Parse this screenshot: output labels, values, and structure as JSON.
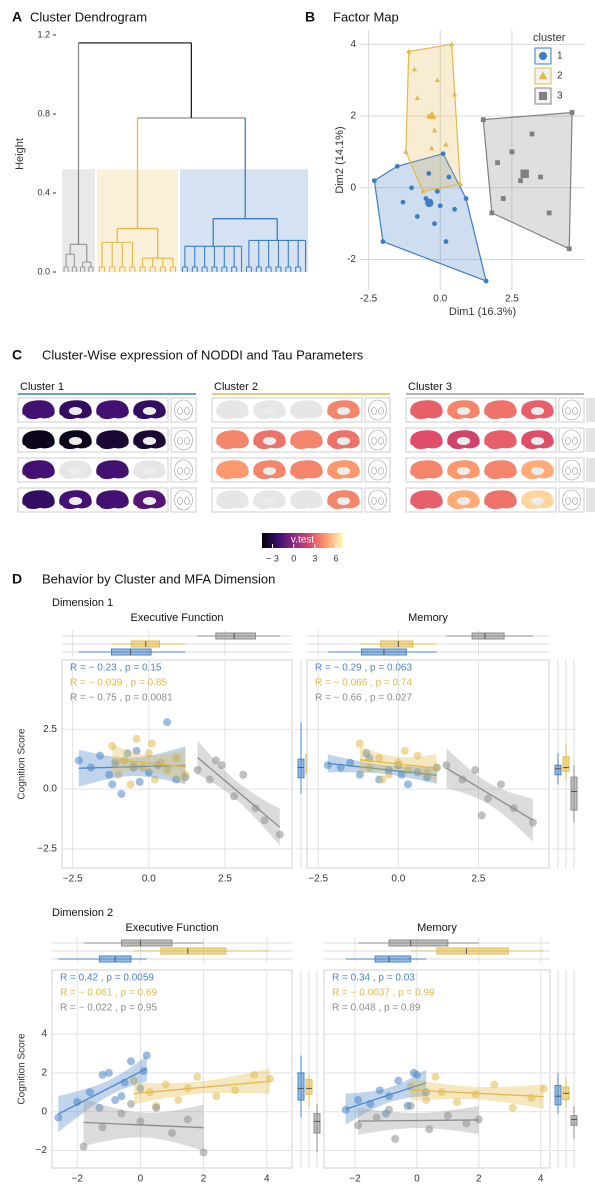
{
  "panels": [
    "A",
    "B",
    "C",
    "D"
  ],
  "panel_d": {
    "title": "Behavior by Cluster and MFA Dimension"
  },
  "chart_data": [
    {
      "type": "dendrogram",
      "title": "Cluster Dendrogram",
      "y_label": "Height",
      "ylim": [
        0,
        1.2
      ],
      "yticks": [
        {
          "value": 0,
          "label": "0.0"
        },
        0.4,
        0.8,
        1.2
      ],
      "root_height": 1.16,
      "join_height": 0.78,
      "cut_height": 0.52,
      "series": [
        {
          "color": "#9a9a9a",
          "height": 0.14,
          "sub_heights": [
            0.09,
            0.05
          ]
        },
        {
          "color": "#e3b94a",
          "height": 0.22,
          "sub_heights": [
            0.15,
            0.07
          ]
        },
        {
          "color": "#3c7dc4",
          "height": 0.27,
          "sub_heights": [
            0.13,
            0.16
          ]
        }
      ]
    },
    {
      "type": "scatter",
      "title": "Factor Map",
      "x_label": "Dim1 (16.3%)",
      "y_label": "Dim2 (14.1%)",
      "xlim": [
        -2.8,
        5.05
      ],
      "ylim": [
        -2.85,
        4.4
      ],
      "xticks": [
        -2.5,
        {
          "value": 0,
          "label": "0.0"
        },
        2.5
      ],
      "yticks": [
        -2,
        0,
        2,
        4
      ],
      "grid": true,
      "legend_title": "cluster",
      "legend": "top-right",
      "series": [
        {
          "name": "1",
          "color": "#3c7dc4",
          "marker": "circle",
          "x": [
            -2.3,
            -2.0,
            1.6,
            0.9,
            0.1,
            -1.5,
            -1.0,
            -0.5,
            0,
            0.3,
            -0.8,
            -0.2,
            0.5,
            -1.3,
            -0.4,
            0.2,
            -0.1
          ],
          "values": [
            0.2,
            -1.5,
            -2.6,
            -0.3,
            0.95,
            0.6,
            0,
            -0.3,
            -0.5,
            0.3,
            -0.8,
            -1.0,
            -0.6,
            -0.4,
            0.4,
            -1.5,
            -0.1
          ]
        },
        {
          "name": "2",
          "color": "#e3b94a",
          "marker": "triangle",
          "x": [
            -1.1,
            0.4,
            0.7,
            -0.6,
            -1.2,
            -0.8,
            -0.4,
            0.2,
            -0.1,
            -0.9,
            0.5,
            -0.3,
            -0.2
          ],
          "values": [
            3.8,
            4.0,
            0.1,
            -0.1,
            1.0,
            2.5,
            2.0,
            1.2,
            3.0,
            3.3,
            2.6,
            1.1,
            1.6
          ]
        },
        {
          "name": "3",
          "color": "#808080",
          "marker": "square",
          "x": [
            1.5,
            4.6,
            4.5,
            1.8,
            2.0,
            2.5,
            3.5,
            2.8,
            3.2,
            3.8,
            2.2
          ],
          "values": [
            1.9,
            2.1,
            -1.7,
            -0.7,
            0.7,
            1.0,
            0.3,
            0.2,
            1.5,
            -0.7,
            -0.3
          ]
        }
      ]
    },
    {
      "type": "heatmap",
      "title": "Cluster-Wise expression of NODDI and Tau Parameters",
      "columns": [
        "Cluster 1",
        "Cluster 2",
        "Cluster 3"
      ],
      "column_colors": [
        "#3c7dc4",
        "#e3b94a",
        "#9a9a9a"
      ],
      "values": [
        [
          [
            -2,
            -2.5,
            -2,
            -2.5
          ],
          [
            -4,
            -4,
            -3.5,
            -3.5
          ],
          [
            -2,
            null,
            -2,
            null
          ],
          [
            -2.5,
            -2,
            -2,
            -1.5
          ]
        ],
        [
          [
            null,
            null,
            null,
            4
          ],
          [
            4,
            3.5,
            4,
            3.5
          ],
          [
            4.5,
            4,
            4,
            4.5
          ],
          [
            null,
            null,
            null,
            4
          ]
        ],
        [
          [
            3,
            4,
            3.5,
            3
          ],
          [
            2.5,
            2,
            3,
            2.5
          ],
          [
            4,
            4.5,
            4,
            5
          ],
          [
            3,
            5,
            3.5,
            6
          ]
        ]
      ],
      "colorbar_label": "v.test",
      "lim": [
        -4.5,
        7
      ],
      "ticks": [
        {
          "value": -3,
          "label": "− 3"
        },
        0,
        3,
        6
      ],
      "colors": [
        "#000004",
        "#3b0f70",
        "#8c2981",
        "#de4968",
        "#fe9f6d",
        "#fcfdbf"
      ]
    },
    {
      "type": "regression",
      "row_title": "Dimension 1",
      "title": "Executive Function",
      "y_label": "Cognition Score",
      "xlim": [
        -2.85,
        4.7
      ],
      "ylim": [
        -3.3,
        5.4
      ],
      "xticks": [
        {
          "value": -2.5,
          "label": "−2.5"
        },
        {
          "value": 0,
          "label": "0.0"
        },
        2.5
      ],
      "yticks": [
        2.5,
        {
          "value": 0,
          "label": "0.0"
        },
        {
          "value": -2.5,
          "label": "−2.5"
        }
      ],
      "series": [
        {
          "color": "#4a86c8",
          "stats": "R = − 0.23 , p = 0.15",
          "x": [
            -2.3,
            -1.9,
            -1.6,
            -1.3,
            -1.1,
            -0.9,
            -0.7,
            -0.5,
            -0.3,
            0,
            0.3,
            0.6,
            0.9,
            1.2,
            -1.2,
            -0.4
          ],
          "values": [
            1.2,
            0.9,
            1.4,
            0.6,
            1.1,
            -0.2,
            1.5,
            0.9,
            0.3,
            0.7,
            1.0,
            2.8,
            0.4,
            0.5,
            0.2,
            1.6
          ]
        },
        {
          "color": "#e3b94a",
          "stats": "R = − 0.039 , p = 0.85",
          "x": [
            -1.2,
            -1,
            -0.8,
            -0.6,
            -0.4,
            -0.2,
            0,
            0.2,
            0.4,
            0.6,
            0.9,
            1.2,
            -0.5,
            0.1
          ],
          "values": [
            1.8,
            0.6,
            1.2,
            0.2,
            2.1,
            0.9,
            1.5,
            0.4,
            1.1,
            0.8,
            1.3,
            0.6,
            1.0,
            1.9
          ]
        },
        {
          "color": "#8c8c8c",
          "stats": "R = − 0.75 , p = 0.0081",
          "x": [
            1.6,
            2.0,
            2.4,
            2.8,
            3.1,
            3.5,
            3.8,
            4.3,
            2.2
          ],
          "values": [
            0.8,
            0.4,
            1.0,
            -0.3,
            0.6,
            -0.8,
            -1.3,
            -1.9,
            1.2
          ]
        }
      ]
    },
    {
      "type": "regression",
      "title": "Memory",
      "xlim": [
        -2.85,
        4.7
      ],
      "ylim": [
        -3.3,
        5.4
      ],
      "xticks": [
        {
          "value": -2.5,
          "label": "−2.5"
        },
        {
          "value": 0,
          "label": "0.0"
        },
        2.5
      ],
      "yticks": [
        2.5,
        0,
        -2.5
      ],
      "series": [
        {
          "color": "#4a86c8",
          "stats": "R = − 0.29 , p = 0.063",
          "x": [
            -2.2,
            -1.8,
            -1.5,
            -1.2,
            -0.9,
            -0.6,
            -0.3,
            0,
            0.3,
            0.6,
            0.9,
            1.2,
            -1,
            0.1
          ],
          "values": [
            1.0,
            0.9,
            1.1,
            0.6,
            1.3,
            0.4,
            0.8,
            1.0,
            0.2,
            0.7,
            0.5,
            0.9,
            1.5,
            0.6
          ]
        },
        {
          "color": "#e3b94a",
          "stats": "R = − 0.066 , p = 0.74",
          "x": [
            -1.2,
            -0.9,
            -0.6,
            -0.3,
            0,
            0.3,
            0.6,
            0.9,
            -0.5,
            0.2,
            1.2
          ],
          "values": [
            1.9,
            0.9,
            1.3,
            0.6,
            1.1,
            0.8,
            1.4,
            0.7,
            0.4,
            1.6,
            0.9
          ]
        },
        {
          "color": "#8c8c8c",
          "stats": "R = − 0.66 , p = 0.027",
          "x": [
            1.5,
            2.0,
            2.4,
            2.8,
            3.2,
            3.6,
            4.2,
            2.6
          ],
          "values": [
            1.0,
            0.4,
            0.8,
            -0.4,
            0.2,
            -0.8,
            -1.4,
            -1.1
          ]
        }
      ]
    },
    {
      "type": "regression",
      "row_title": "Dimension 2",
      "title": "Executive Function",
      "y_label": "Cognition Score",
      "xlim": [
        -2.8,
        4.8
      ],
      "ylim": [
        -2.9,
        7.3
      ],
      "xticks": [
        {
          "value": -2,
          "label": "−2"
        },
        0,
        2,
        4
      ],
      "yticks": [
        4,
        2,
        0,
        {
          "value": -2,
          "label": "−2"
        }
      ],
      "series": [
        {
          "color": "#4a86c8",
          "stats": "R = 0.42 , p = 0.0059",
          "x": [
            -2.6,
            -2.0,
            -1.6,
            -1.3,
            -1.0,
            -0.8,
            -0.5,
            -0.3,
            0,
            0.2,
            -0.6,
            -1.2,
            0.1
          ],
          "values": [
            -0.3,
            0.5,
            1.0,
            0.2,
            2.0,
            0.6,
            1.5,
            2.6,
            1.2,
            2.9,
            0.8,
            1.9,
            2.1
          ]
        },
        {
          "color": "#e3b94a",
          "stats": "R = − 0.061 , p = 0.69",
          "x": [
            -0.2,
            0.3,
            0.8,
            1.2,
            1.8,
            2.4,
            3.0,
            3.6,
            4.1,
            0.5,
            1.5
          ],
          "values": [
            1.6,
            1.0,
            1.4,
            0.6,
            1.8,
            0.8,
            1.1,
            1.9,
            1.7,
            0.3,
            1.2
          ]
        },
        {
          "color": "#8c8c8c",
          "stats": "R = − 0.022 , p = 0.95",
          "x": [
            -1.8,
            -1.2,
            -0.6,
            0,
            0.5,
            1.0,
            1.5,
            2.0,
            -0.3
          ],
          "values": [
            -1.8,
            -0.8,
            -0.1,
            -0.5,
            0.2,
            -1.1,
            -0.4,
            -2.1,
            0.4
          ]
        }
      ]
    },
    {
      "type": "regression",
      "title": "Memory",
      "xlim": [
        -3.0,
        4.3
      ],
      "ylim": [
        -2.9,
        7.3
      ],
      "xticks": [
        {
          "value": -2,
          "label": "−2"
        },
        0,
        2,
        4
      ],
      "yticks": [
        4,
        2,
        0,
        -2
      ],
      "series": [
        {
          "color": "#4a86c8",
          "stats": "R = 0.34 , p = 0.03",
          "x": [
            -2.3,
            -1.9,
            -1.5,
            -1.2,
            -0.9,
            -0.6,
            -0.3,
            0,
            0.3,
            -1.0,
            -0.1
          ],
          "values": [
            0.1,
            0.6,
            0.4,
            1.1,
            0.8,
            1.6,
            0.3,
            1.9,
            1.0,
            -0.1,
            2.0
          ]
        },
        {
          "color": "#e3b94a",
          "stats": "R = − 0.0037 , p = 0.99",
          "x": [
            -0.2,
            0.3,
            0.8,
            1.3,
            1.9,
            2.5,
            3.1,
            3.7,
            4.1,
            0.6
          ],
          "values": [
            1.3,
            0.6,
            1.0,
            0.5,
            0.9,
            1.4,
            0.2,
            0.7,
            1.2,
            1.8
          ]
        },
        {
          "color": "#8c8c8c",
          "stats": "R = 0.048 , p = 0.89",
          "x": [
            -1.9,
            -1.3,
            -0.7,
            -0.2,
            0.4,
            1.0,
            1.6,
            2.0,
            -0.9
          ],
          "values": [
            -0.7,
            -0.3,
            -1.4,
            0.3,
            -0.9,
            -0.2,
            -0.6,
            -0.4,
            0.1
          ]
        }
      ]
    }
  ]
}
